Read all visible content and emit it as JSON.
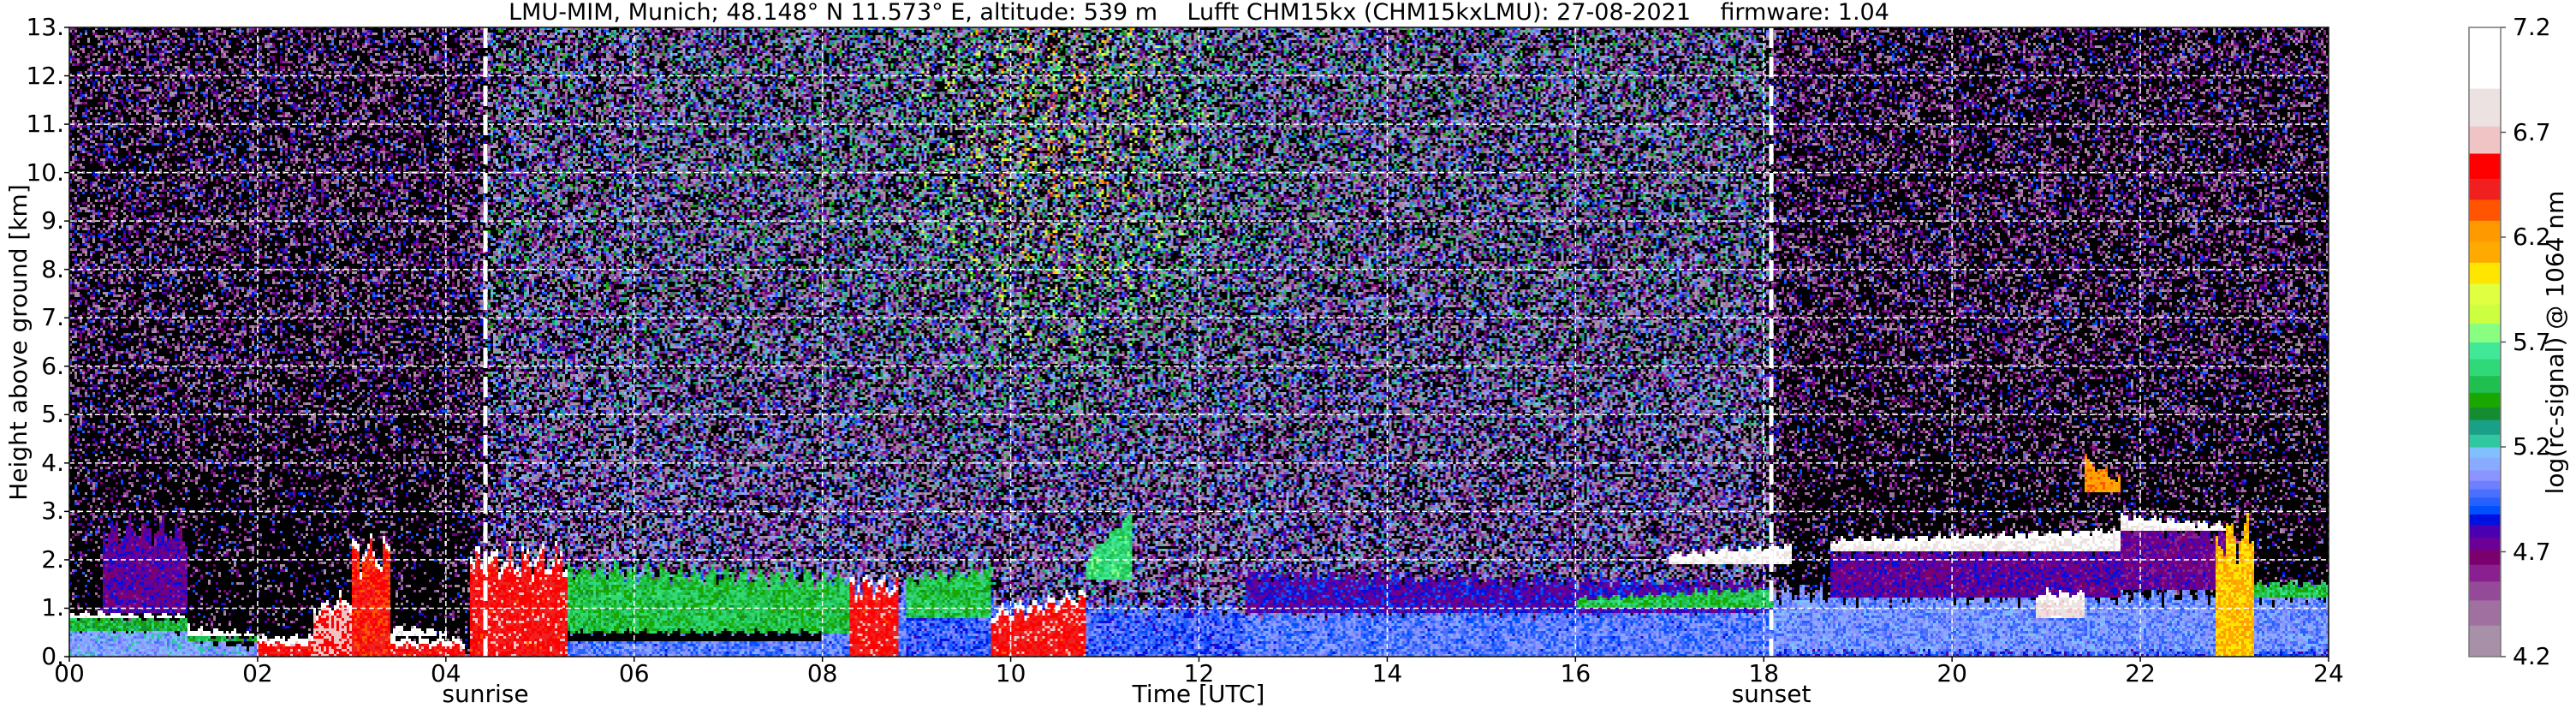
{
  "chart_data": {
    "type": "heatmap",
    "title": "LMU-MIM, Munich; 48.148° N 11.573° E, altitude: 539 m    Lufft CHM15kx (CHM15kxLMU): 27-08-2021    firmware: 1.04",
    "xlabel": "Time [UTC]",
    "ylabel": "Height above ground [km]",
    "xlim": [
      0,
      24
    ],
    "ylim": [
      0,
      13
    ],
    "grid": true,
    "x_ticks": [
      0,
      2,
      4,
      6,
      8,
      10,
      12,
      14,
      16,
      18,
      20,
      22,
      24
    ],
    "x_tick_labels": [
      "00",
      "02",
      "04",
      "06",
      "08",
      "10",
      "12",
      "14",
      "16",
      "18",
      "20",
      "22",
      "24"
    ],
    "y_ticks": [
      0,
      1,
      2,
      3,
      4,
      5,
      6,
      7,
      8,
      9,
      10,
      11,
      12,
      13
    ],
    "y_tick_labels": [
      "0.",
      "1.",
      "2.",
      "3.",
      "4.",
      "5.",
      "6.",
      "7.",
      "8.",
      "9.",
      "10.",
      "11.",
      "12.",
      "13."
    ],
    "annotations": [
      {
        "label": "sunrise",
        "time": 4.42
      },
      {
        "label": "sunset",
        "time": 18.08
      }
    ],
    "colorbar": {
      "label": "log(rc-signal) @ 1064 nm",
      "range": [
        4.2,
        7.2
      ],
      "ticks": [
        4.2,
        4.7,
        5.2,
        5.7,
        6.2,
        6.7,
        7.2
      ],
      "tick_labels": [
        "4.2",
        "4.7",
        "5.2",
        "5.7",
        "6.2",
        "6.7",
        "7.2"
      ],
      "below_range_color": "#000000",
      "levels": [
        {
          "from": 4.2,
          "color": "#a890a8"
        },
        {
          "from": 4.35,
          "color": "#a070a0"
        },
        {
          "from": 4.47,
          "color": "#944a98"
        },
        {
          "from": 4.56,
          "color": "#8a2090"
        },
        {
          "from": 4.64,
          "color": "#7a006e"
        },
        {
          "from": 4.71,
          "color": "#6a0098"
        },
        {
          "from": 4.77,
          "color": "#4a00b0"
        },
        {
          "from": 4.83,
          "color": "#0010e0"
        },
        {
          "from": 4.88,
          "color": "#0050ff"
        },
        {
          "from": 4.92,
          "color": "#2860ff"
        },
        {
          "from": 4.96,
          "color": "#4a70ff"
        },
        {
          "from": 5.0,
          "color": "#6e80ff"
        },
        {
          "from": 5.04,
          "color": "#8c94ff"
        },
        {
          "from": 5.09,
          "color": "#88aaff"
        },
        {
          "from": 5.15,
          "color": "#80c0ff"
        },
        {
          "from": 5.2,
          "color": "#30c8a0"
        },
        {
          "from": 5.26,
          "color": "#1aa088"
        },
        {
          "from": 5.33,
          "color": "#148c30"
        },
        {
          "from": 5.39,
          "color": "#1aa800"
        },
        {
          "from": 5.46,
          "color": "#20c050"
        },
        {
          "from": 5.54,
          "color": "#30d878"
        },
        {
          "from": 5.62,
          "color": "#40e898"
        },
        {
          "from": 5.7,
          "color": "#88ff80"
        },
        {
          "from": 5.79,
          "color": "#ccff40"
        },
        {
          "from": 5.88,
          "color": "#e0ff40"
        },
        {
          "from": 5.98,
          "color": "#ffe600"
        },
        {
          "from": 6.08,
          "color": "#ffaa00"
        },
        {
          "from": 6.18,
          "color": "#ff9900"
        },
        {
          "from": 6.28,
          "color": "#ff5500"
        },
        {
          "from": 6.38,
          "color": "#f02020"
        },
        {
          "from": 6.48,
          "color": "#ff0000"
        },
        {
          "from": 6.6,
          "color": "#f0c4c4"
        },
        {
          "from": 6.73,
          "color": "#ece2e2"
        },
        {
          "from": 6.91,
          "color": "#ffffff"
        }
      ]
    },
    "regions": [
      {
        "from": 0,
        "to": 1.25,
        "bottom": 0,
        "top": [
          0.6,
          0.55
        ],
        "value": 5.1
      },
      {
        "from": 0,
        "to": 1.25,
        "bottom": 0.55,
        "top": [
          0.82,
          0.75
        ],
        "value": 5.45
      },
      {
        "from": 0,
        "to": 1.25,
        "bottom": 0.78,
        "top": [
          0.9,
          0.85
        ],
        "value": 6.9
      },
      {
        "from": 0.35,
        "to": 1.25,
        "bottom": 0.9,
        "top": [
          2.6,
          2.6
        ],
        "value": 4.75
      },
      {
        "from": 1.25,
        "to": 2.0,
        "bottom": 0,
        "top": [
          0.35,
          0.2
        ],
        "value": 5.1
      },
      {
        "from": 1.25,
        "to": 2.0,
        "bottom": 0.3,
        "top": [
          0.5,
          0.35
        ],
        "value": 5.45
      },
      {
        "from": 1.25,
        "to": 2.0,
        "bottom": 0.45,
        "top": [
          0.6,
          0.45
        ],
        "value": 6.9
      },
      {
        "from": 2.0,
        "to": 4.2,
        "bottom": 0,
        "top": [
          0.4,
          0.35
        ],
        "value": 6.5
      },
      {
        "from": 2.6,
        "to": 3.0,
        "bottom": 0,
        "top": [
          1.0,
          1.2
        ],
        "value": 6.6
      },
      {
        "from": 3.0,
        "to": 3.4,
        "bottom": 0,
        "top": [
          2.2,
          2.2
        ],
        "value": 6.45
      },
      {
        "from": 3.4,
        "to": 4.0,
        "bottom": 0.4,
        "top": [
          0.6,
          0.5
        ],
        "value": 6.9
      },
      {
        "from": 4.25,
        "to": 5.3,
        "bottom": 0,
        "top": [
          2.0,
          2.0
        ],
        "value": 6.5
      },
      {
        "from": 5.3,
        "to": 8.9,
        "bottom": 0,
        "top": [
          1.6,
          1.4
        ],
        "value": 5.0
      },
      {
        "from": 5.3,
        "to": 8.3,
        "bottom": 0.5,
        "top": [
          1.8,
          1.6
        ],
        "value": 5.5
      },
      {
        "from": 5.3,
        "to": 8.0,
        "bottom": 0.3,
        "top": [
          0.5,
          0.5
        ],
        "value": 4.0
      },
      {
        "from": 8.3,
        "to": 8.8,
        "bottom": 0,
        "top": [
          1.5,
          1.5
        ],
        "value": 6.5
      },
      {
        "from": 8.9,
        "to": 12.5,
        "bottom": 0,
        "top": [
          1.1,
          1.0
        ],
        "value": 4.95
      },
      {
        "from": 8.9,
        "to": 9.8,
        "bottom": 0.8,
        "top": [
          1.6,
          1.8
        ],
        "value": 5.5
      },
      {
        "from": 9.8,
        "to": 10.8,
        "bottom": 0,
        "top": [
          0.9,
          1.3
        ],
        "value": 6.5
      },
      {
        "from": 10.8,
        "to": 11.3,
        "bottom": 1.6,
        "top": [
          2.0,
          3.0
        ],
        "value": 5.6
      },
      {
        "from": 12.5,
        "to": 18.1,
        "bottom": 0,
        "top": [
          0.9,
          1.0
        ],
        "value": 5.0
      },
      {
        "from": 12.5,
        "to": 18.1,
        "bottom": 0.9,
        "top": [
          1.7,
          1.5
        ],
        "value": 4.8
      },
      {
        "from": 16.0,
        "to": 18.1,
        "bottom": 1.0,
        "top": [
          1.2,
          1.4
        ],
        "value": 5.5
      },
      {
        "from": 17.0,
        "to": 18.3,
        "bottom": 1.9,
        "top": [
          2.1,
          2.3
        ],
        "value": 6.9
      },
      {
        "from": 18.1,
        "to": 24,
        "bottom": 0,
        "top": [
          1.3,
          1.3
        ],
        "value": 5.05
      },
      {
        "from": 18.1,
        "to": 24,
        "bottom": 0,
        "top": [
          0.1,
          0.1
        ],
        "value": 4.92
      },
      {
        "from": 18.7,
        "to": 21.8,
        "bottom": 1.2,
        "top": [
          2.2,
          2.3
        ],
        "value": 4.75
      },
      {
        "from": 18.7,
        "to": 21.8,
        "bottom": 2.2,
        "top": [
          2.4,
          2.6
        ],
        "value": 6.9
      },
      {
        "from": 20.9,
        "to": 21.4,
        "bottom": 0.8,
        "top": [
          1.3,
          1.3
        ],
        "value": 6.8
      },
      {
        "from": 21.8,
        "to": 22.9,
        "bottom": 1.4,
        "top": [
          2.8,
          2.6
        ],
        "value": 4.72
      },
      {
        "from": 21.8,
        "to": 22.9,
        "bottom": 2.6,
        "top": [
          2.9,
          2.7
        ],
        "value": 6.9
      },
      {
        "from": 21.4,
        "to": 21.8,
        "bottom": 3.4,
        "top": [
          4.1,
          3.6
        ],
        "value": 6.2
      },
      {
        "from": 22.8,
        "to": 23.2,
        "bottom": 0,
        "top": [
          2.5,
          2.5
        ],
        "value": 6.1
      },
      {
        "from": 23.2,
        "to": 24,
        "bottom": 1.2,
        "top": [
          1.5,
          1.5
        ],
        "value": 5.5
      }
    ]
  }
}
